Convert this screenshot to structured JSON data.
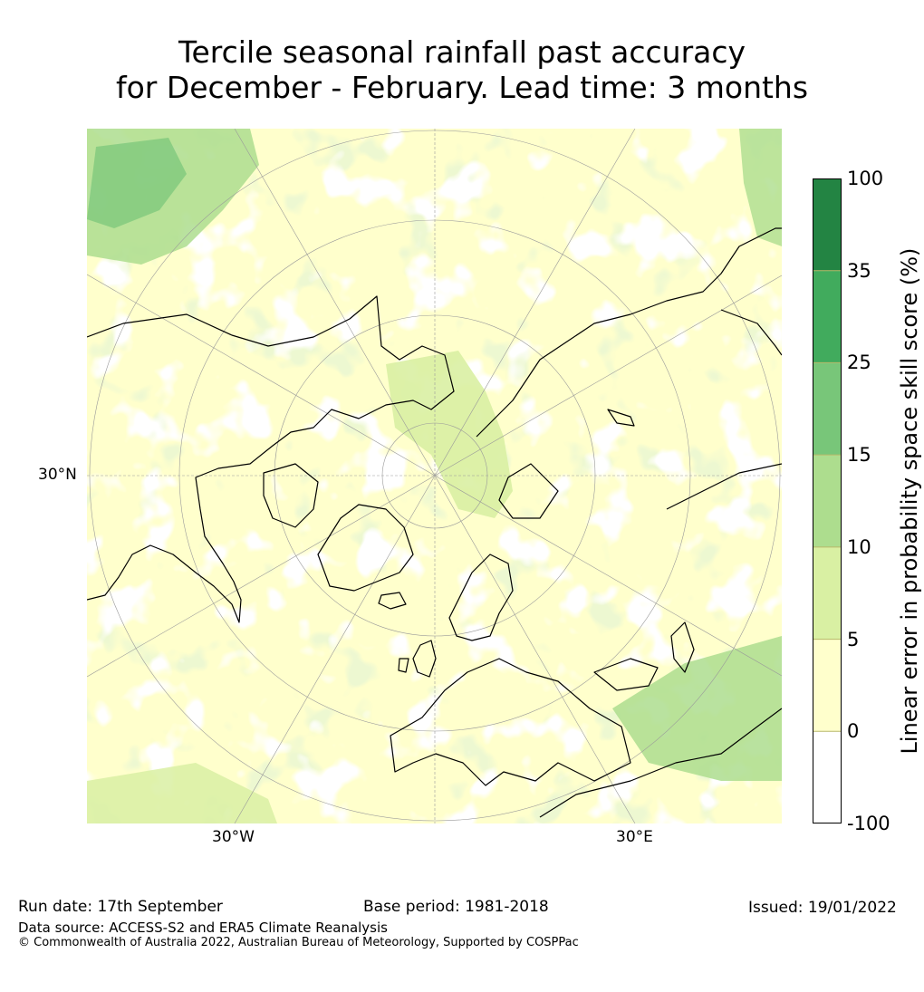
{
  "title_line1": "Tercile seasonal rainfall past accuracy",
  "title_line2": "for December - February. Lead time: 3 months",
  "map": {
    "projection": "north-polar-stereographic",
    "lat_label": "30°N",
    "lon_labels": [
      "30°W",
      "30°E"
    ],
    "background_color": "#ffffcc"
  },
  "colorbar": {
    "title": "Linear error in probability space skill score (%)",
    "ticks": [
      "100",
      "35",
      "25",
      "15",
      "10",
      "5",
      "0",
      "-100"
    ],
    "colors": [
      "#238443",
      "#41ab5d",
      "#78c679",
      "#addd8e",
      "#d9f0a3",
      "#ffffcc",
      "#ffffff"
    ]
  },
  "footer": {
    "run_date": "Run date: 17th September",
    "base_period": "Base period: 1981-2018",
    "issued": "Issued: 19/01/2022",
    "data_source": "Data source: ACCESS-S2 and ERA5 Climate Reanalysis",
    "copyright": "© Commonwealth of Australia 2022, Australian Bureau of Meteorology, Supported by COSPPac"
  }
}
